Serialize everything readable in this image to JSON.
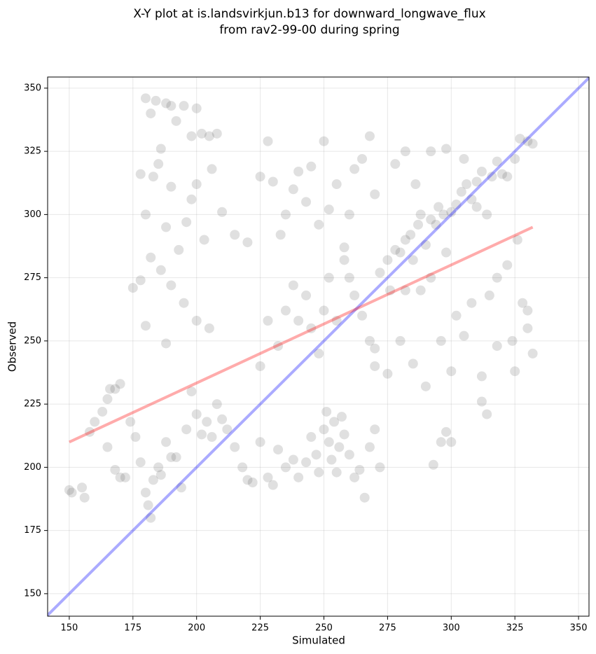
{
  "chart_data": {
    "type": "scatter",
    "title": [
      "X-Y plot at is.landsvirkjun.b13 for downward_longwave_flux",
      "from rav2-99-00 during spring"
    ],
    "x_label": "Simulated",
    "y_label": "Observed",
    "xlim": [
      141.5,
      354.1
    ],
    "ylim": [
      141.1,
      354.4
    ],
    "xticks": [
      150,
      175,
      200,
      225,
      250,
      275,
      300,
      325,
      350
    ],
    "yticks": [
      150,
      175,
      200,
      225,
      250,
      275,
      300,
      325,
      350
    ],
    "grid": true,
    "color": "#555555",
    "x": [
      150,
      151,
      155,
      156,
      158,
      160,
      163,
      165,
      166,
      168,
      170,
      165,
      168,
      170,
      172,
      174,
      176,
      178,
      180,
      181,
      182,
      183,
      185,
      186,
      188,
      190,
      192,
      194,
      196,
      198,
      200,
      202,
      204,
      206,
      208,
      210,
      212,
      215,
      218,
      220,
      222,
      225,
      228,
      230,
      232,
      235,
      238,
      240,
      243,
      245,
      247,
      248,
      250,
      251,
      252,
      253,
      254,
      255,
      256,
      257,
      258,
      260,
      262,
      264,
      266,
      268,
      270,
      272,
      180,
      182,
      184,
      186,
      188,
      190,
      192,
      195,
      198,
      200,
      202,
      205,
      208,
      178,
      180,
      183,
      185,
      188,
      190,
      193,
      196,
      198,
      200,
      203,
      206,
      210,
      175,
      178,
      182,
      186,
      190,
      195,
      200,
      205,
      180,
      188,
      215,
      220,
      225,
      228,
      230,
      233,
      235,
      238,
      240,
      243,
      245,
      248,
      250,
      252,
      255,
      258,
      260,
      262,
      265,
      268,
      270,
      225,
      228,
      232,
      235,
      238,
      240,
      243,
      245,
      248,
      250,
      252,
      255,
      258,
      260,
      262,
      265,
      268,
      270,
      272,
      275,
      276,
      278,
      280,
      282,
      284,
      285,
      287,
      288,
      290,
      292,
      294,
      295,
      297,
      300,
      302,
      304,
      306,
      308,
      310,
      312,
      314,
      316,
      318,
      320,
      322,
      325,
      327,
      330,
      332,
      326,
      328,
      330,
      324,
      318,
      312,
      305,
      300,
      296,
      290,
      285,
      280,
      275,
      270,
      300,
      296,
      293,
      298,
      314,
      312,
      318,
      322,
      315,
      308,
      302,
      298,
      292,
      288,
      282,
      278,
      282,
      286,
      292,
      298,
      305,
      310,
      332,
      330,
      325
    ],
    "values": [
      191,
      190,
      192,
      188,
      214,
      218,
      222,
      227,
      231,
      231,
      233,
      208,
      199,
      196,
      196,
      218,
      212,
      202,
      190,
      185,
      180,
      195,
      200,
      197,
      210,
      204,
      204,
      192,
      215,
      230,
      221,
      213,
      218,
      212,
      225,
      219,
      215,
      208,
      200,
      195,
      194,
      210,
      196,
      193,
      207,
      200,
      203,
      196,
      202,
      212,
      205,
      198,
      215,
      222,
      210,
      203,
      218,
      198,
      208,
      220,
      213,
      205,
      196,
      199,
      188,
      208,
      215,
      200,
      346,
      340,
      345,
      326,
      344,
      343,
      337,
      343,
      331,
      342,
      332,
      331,
      332,
      316,
      300,
      315,
      320,
      295,
      311,
      286,
      297,
      306,
      312,
      290,
      318,
      301,
      271,
      274,
      283,
      278,
      272,
      265,
      258,
      255,
      256,
      249,
      292,
      289,
      315,
      329,
      313,
      292,
      300,
      310,
      317,
      305,
      319,
      296,
      329,
      302,
      312,
      287,
      300,
      318,
      322,
      331,
      308,
      240,
      258,
      248,
      262,
      272,
      258,
      268,
      255,
      245,
      262,
      275,
      258,
      282,
      275,
      268,
      260,
      250,
      240,
      277,
      282,
      270,
      286,
      285,
      290,
      292,
      282,
      296,
      300,
      288,
      298,
      296,
      303,
      300,
      301,
      304,
      309,
      312,
      306,
      313,
      317,
      300,
      315,
      321,
      316,
      315,
      322,
      330,
      329,
      328,
      290,
      265,
      262,
      250,
      248,
      236,
      252,
      238,
      250,
      232,
      241,
      250,
      237,
      247,
      210,
      210,
      201,
      214,
      221,
      226,
      275,
      280,
      268,
      265,
      260,
      285,
      275,
      270,
      270,
      320,
      325,
      312,
      325,
      326,
      322,
      303,
      245,
      255,
      238
    ],
    "identity_line": {
      "color": "#0000ff",
      "x": [
        141.5,
        354.1
      ],
      "y": [
        141.5,
        354.1
      ]
    },
    "fit_line": {
      "color": "#ff0000",
      "x": [
        150,
        332
      ],
      "y": [
        210,
        295
      ]
    }
  }
}
